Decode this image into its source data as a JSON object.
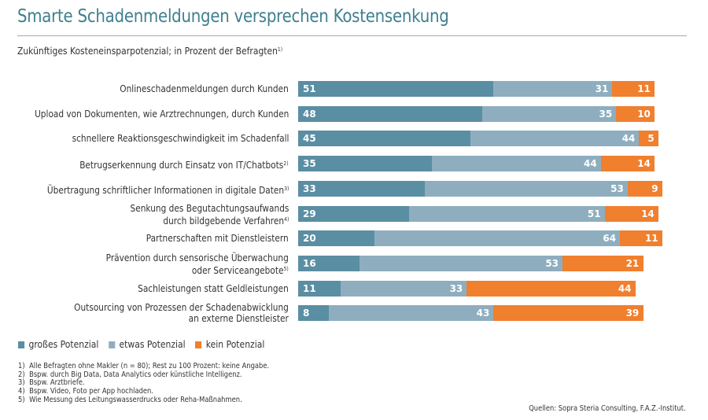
{
  "title": "Smarte Schadenmeldungen versprechen Kostensenkung",
  "subtitle": "Zukünftiges Kosteneinsparpotenzial; in Prozent der Befragten",
  "subtitle_note": "1)",
  "colors": {
    "title": "#3f7f8f",
    "gross": "#5a8ea3",
    "etwas": "#8eaebf",
    "kein": "#f07f2e"
  },
  "chart_data": {
    "type": "bar",
    "orientation": "horizontal",
    "stacked": true,
    "title": "Smarte Schadenmeldungen versprechen Kostensenkung",
    "subtitle": "Zukünftiges Kosteneinsparpotenzial; in Prozent der Befragten",
    "xlabel": "",
    "ylabel": "",
    "xlim": [
      0,
      100
    ],
    "grid": false,
    "legend_position": "bottom-left",
    "categories": [
      {
        "lines": [
          "Onlineschadenmeldungen durch Kunden"
        ],
        "note": ""
      },
      {
        "lines": [
          "Upload von Dokumenten, wie Arztrechnungen, durch Kunden"
        ],
        "note": ""
      },
      {
        "lines": [
          "schnellere Reaktionsgeschwindigkeit im Schadenfall"
        ],
        "note": ""
      },
      {
        "lines": [
          "Betrugserkennung durch Einsatz von IT/Chatbots"
        ],
        "note": "2)"
      },
      {
        "lines": [
          "Übertragung schriftlicher Informationen in digitale Daten"
        ],
        "note": "3)"
      },
      {
        "lines": [
          "Senkung des Begutachtungsaufwands",
          "durch bildgebende Verfahren"
        ],
        "note": "4)"
      },
      {
        "lines": [
          "Partnerschaften mit Dienstleistern"
        ],
        "note": ""
      },
      {
        "lines": [
          "Prävention durch sensorische Überwachung",
          "oder Serviceangebote"
        ],
        "note": "5)"
      },
      {
        "lines": [
          "Sachleistungen statt Geldleistungen"
        ],
        "note": ""
      },
      {
        "lines": [
          "Outsourcing von Prozessen der Schadenabwicklung",
          "an externe Dienstleister"
        ],
        "note": ""
      }
    ],
    "series": [
      {
        "name": "großes Potenzial",
        "key": "gross",
        "values": [
          51,
          48,
          45,
          35,
          33,
          29,
          20,
          16,
          11,
          8
        ]
      },
      {
        "name": "etwas Potenzial",
        "key": "etwas",
        "values": [
          31,
          35,
          44,
          44,
          53,
          51,
          64,
          53,
          33,
          43
        ]
      },
      {
        "name": "kein Potenzial",
        "key": "kein",
        "values": [
          11,
          10,
          5,
          14,
          9,
          14,
          11,
          21,
          44,
          39
        ]
      }
    ]
  },
  "footnotes": [
    {
      "n": "1)",
      "text": "Alle Befragten ohne Makler (n = 80); Rest zu 100 Prozent: keine Angabe."
    },
    {
      "n": "2)",
      "text": "Bspw. durch Big Data, Data Analytics oder künstliche Intelligenz."
    },
    {
      "n": "3)",
      "text": "Bspw. Arztbriefe."
    },
    {
      "n": "4)",
      "text": "Bspw. Video, Foto per App hochladen."
    },
    {
      "n": "5)",
      "text": "Wie Messung des Leitungswasserdrucks oder Reha-Maßnahmen."
    }
  ],
  "source": "Quellen: Sopra Steria Consulting, F.A.Z.-Institut."
}
